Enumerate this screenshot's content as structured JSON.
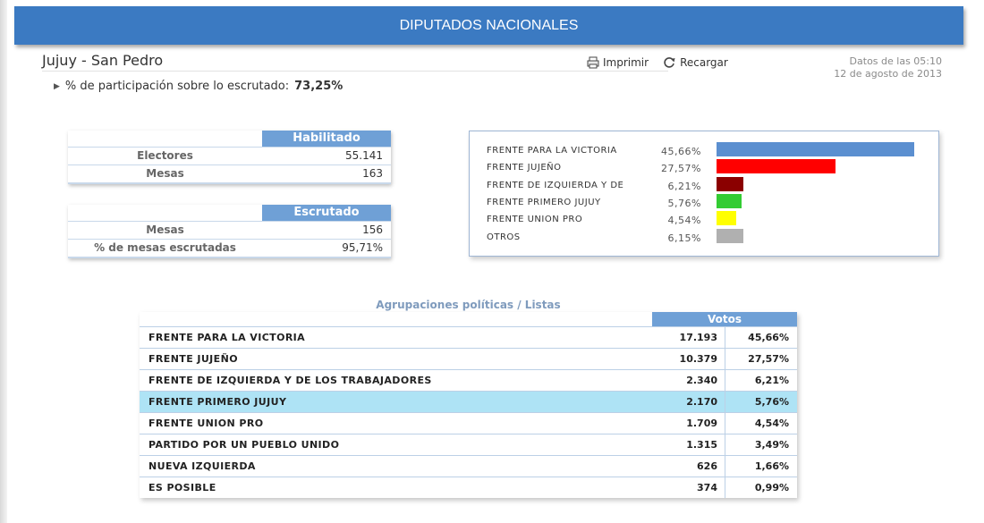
{
  "header": {
    "title": "DIPUTADOS NACIONALES"
  },
  "location": "Jujuy - San Pedro",
  "toolbar": {
    "print_label": "Imprimir",
    "reload_label": "Recargar"
  },
  "data_time": {
    "line1": "Datos de las 05:10",
    "line2": "12 de agosto de 2013"
  },
  "participation": {
    "label": "% de participación sobre lo escrutado:",
    "value": "73,25%"
  },
  "habilitado": {
    "label": "Habilitado",
    "rows": [
      {
        "key": "Electores",
        "value": "55.141"
      },
      {
        "key": "Mesas",
        "value": "163"
      }
    ]
  },
  "escrutado": {
    "label": "Escrutado",
    "rows": [
      {
        "key": "Mesas",
        "value": "156"
      },
      {
        "key": "% de mesas escrutadas",
        "value": "95,71%"
      }
    ]
  },
  "chart_data": {
    "type": "bar",
    "categories": [
      "FRENTE PARA LA VICTORIA",
      "FRENTE JUJEÑO",
      "FRENTE DE IZQUIERDA Y DE",
      "FRENTE PRIMERO JUJUY",
      "FRENTE UNION PRO",
      "OTROS"
    ],
    "values": [
      45.66,
      27.57,
      6.21,
      5.76,
      4.54,
      6.15
    ],
    "labels": [
      "45,66%",
      "27,57%",
      "6,21%",
      "5,76%",
      "4,54%",
      "6,15%"
    ],
    "colors": [
      "#5b8fd0",
      "#ff0000",
      "#8b0000",
      "#33cc33",
      "#ffff00",
      "#b0b0b0"
    ],
    "title": "",
    "xlabel": "",
    "ylabel": "",
    "orientation": "horizontal"
  },
  "table": {
    "title": "Agrupaciones políticas / Listas",
    "votes_header": "Votos",
    "highlight_color": "#aee3f5",
    "rows": [
      {
        "name": "FRENTE PARA LA VICTORIA",
        "votes": "17.193",
        "pct": "45,66%"
      },
      {
        "name": "FRENTE JUJEÑO",
        "votes": "10.379",
        "pct": "27,57%"
      },
      {
        "name": "FRENTE DE IZQUIERDA Y DE LOS TRABAJADORES",
        "votes": "2.340",
        "pct": "6,21%"
      },
      {
        "name": "FRENTE PRIMERO JUJUY",
        "votes": "2.170",
        "pct": "5,76%",
        "highlight": true
      },
      {
        "name": "FRENTE UNION PRO",
        "votes": "1.709",
        "pct": "4,54%"
      },
      {
        "name": "PARTIDO POR UN PUEBLO UNIDO",
        "votes": "1.315",
        "pct": "3,49%"
      },
      {
        "name": "NUEVA IZQUIERDA",
        "votes": "626",
        "pct": "1,66%"
      },
      {
        "name": "ES POSIBLE",
        "votes": "374",
        "pct": "0,99%"
      }
    ]
  },
  "icons": {
    "print": "printer-icon",
    "reload": "reload-icon",
    "bullet": "triangle-bullet-icon"
  }
}
